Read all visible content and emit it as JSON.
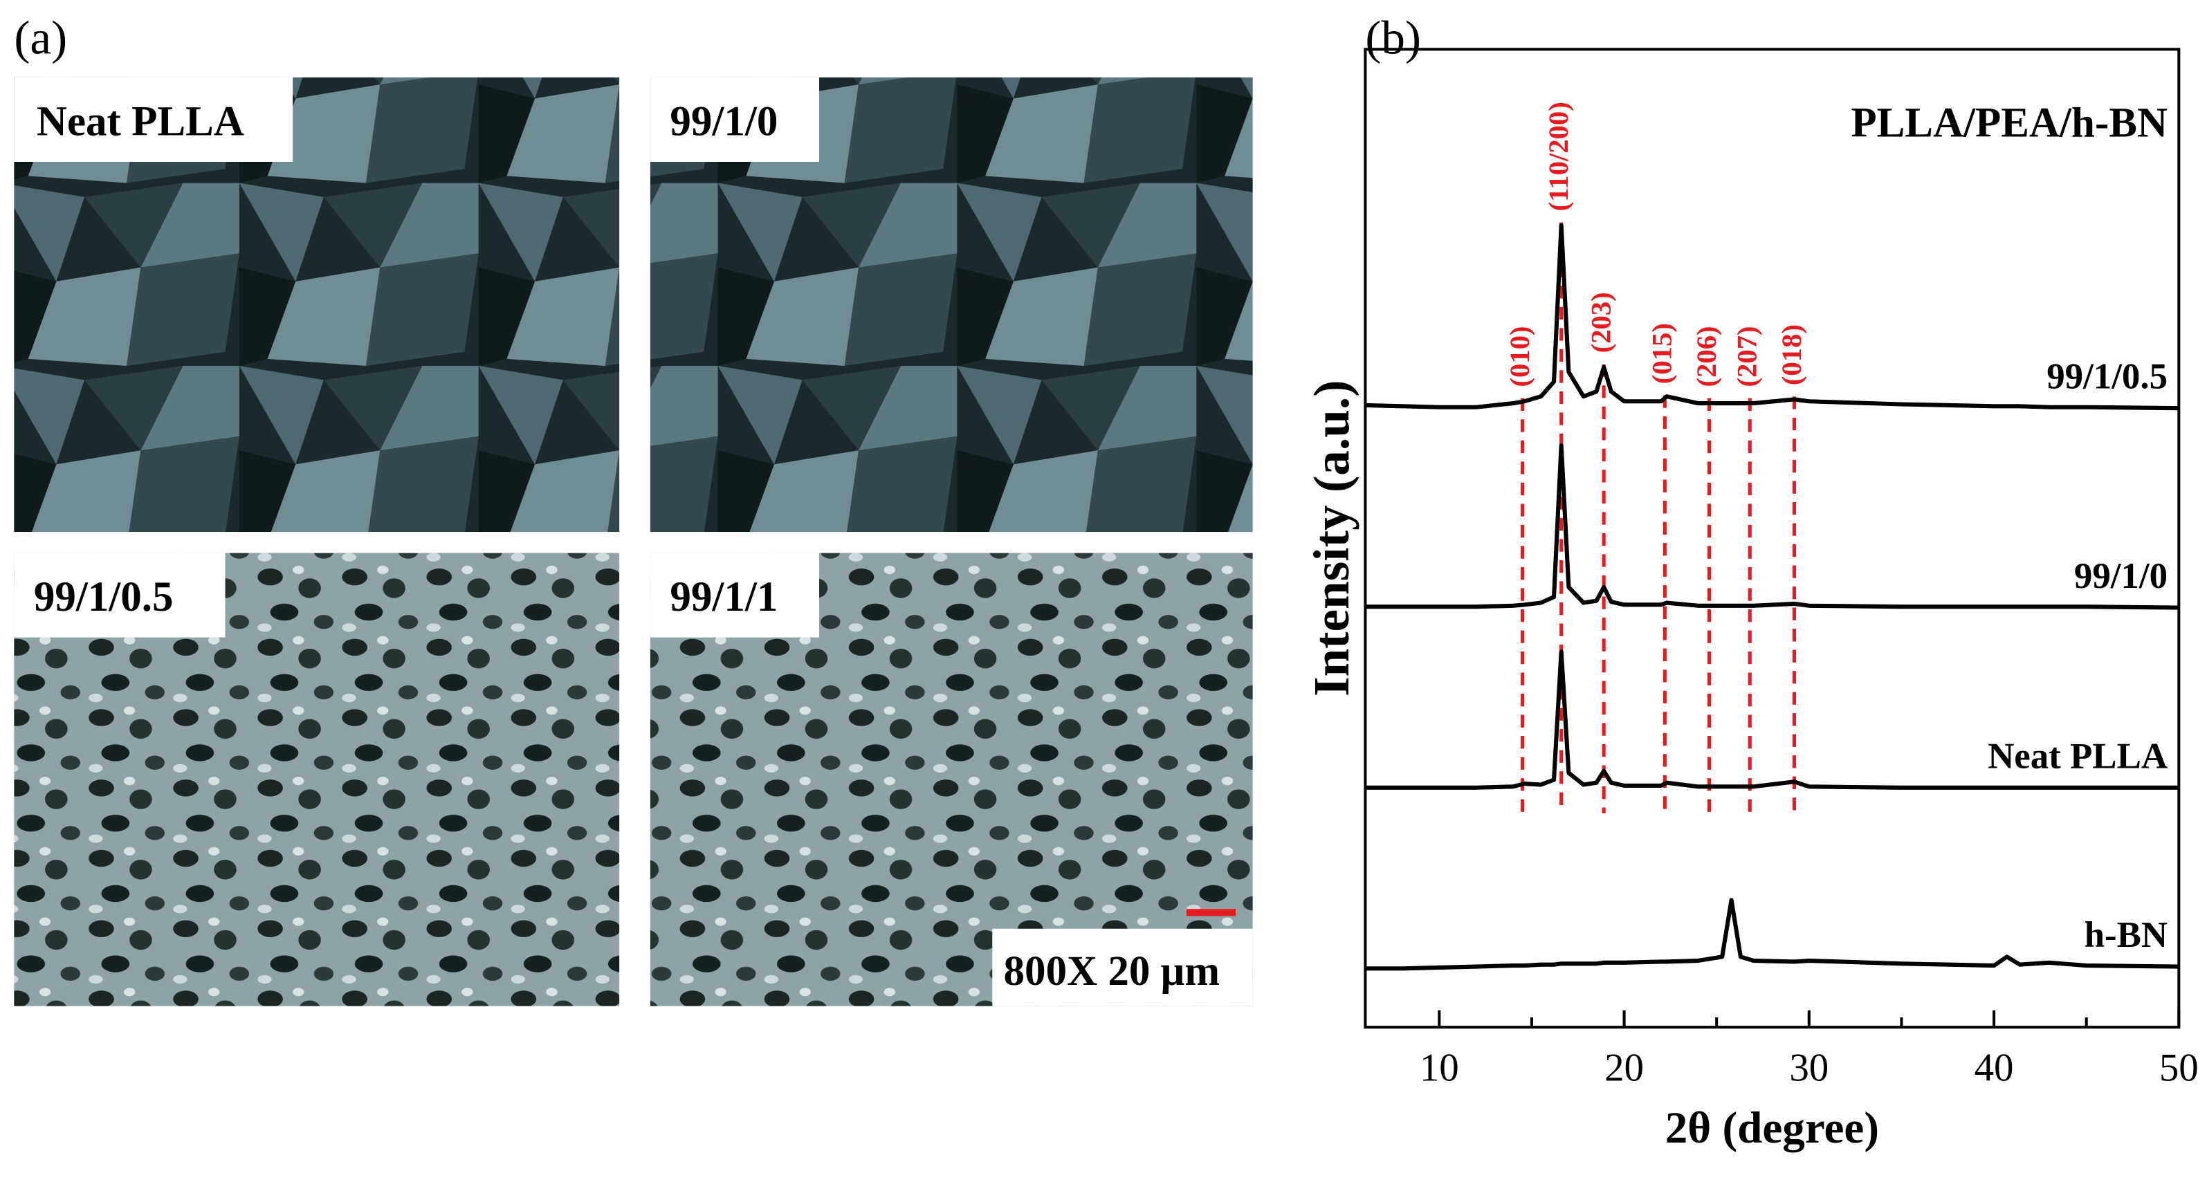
{
  "panel_a": {
    "label": "(a)",
    "images": [
      {
        "label": "Neat PLLA"
      },
      {
        "label": "99/1/0"
      },
      {
        "label": "99/1/0.5"
      },
      {
        "label": "99/1/1"
      }
    ],
    "scale_bar": "800X 20 μm",
    "scale_bar_color": "#e8191f"
  },
  "panel_b": {
    "label": "(b)"
  },
  "chart_data": {
    "type": "line",
    "annotation": "PLLA/PEA/h-BN",
    "xlabel": "2θ (degree)",
    "ylabel": "Intensity (a.u.)",
    "xlim": [
      6,
      50
    ],
    "xticks": [
      10,
      20,
      30,
      40,
      50
    ],
    "minor_xticks": [
      15,
      25,
      35,
      45
    ],
    "ylim": [
      0,
      100
    ],
    "x": [
      6,
      8,
      10,
      12,
      14,
      14.6,
      15.5,
      16.2,
      16.6,
      17.0,
      17.8,
      18.5,
      18.9,
      19.3,
      20,
      22,
      22.3,
      24,
      25.3,
      25.8,
      26.3,
      27,
      29.2,
      30,
      35,
      40,
      40.7,
      41.4,
      43,
      45,
      50
    ],
    "series": [
      {
        "name": "99/1/0.5",
        "color": "#000000",
        "values": [
          63.6,
          63.5,
          63.4,
          63.4,
          63.8,
          64,
          64.5,
          66,
          82,
          67,
          64.5,
          65,
          67.5,
          65,
          64,
          64,
          64.5,
          63.8,
          63.8,
          63.8,
          63.8,
          63.8,
          64.2,
          64,
          63.7,
          63.5,
          63.5,
          63.5,
          63.4,
          63.4,
          63.3
        ]
      },
      {
        "name": "99/1/0",
        "color": "#000000",
        "values": [
          43,
          43,
          43,
          43,
          43.1,
          43.2,
          43.4,
          44,
          59.5,
          45,
          43.4,
          43.6,
          45,
          43.5,
          43.2,
          43.2,
          43.4,
          43.1,
          43.1,
          43.1,
          43.1,
          43.1,
          43.3,
          43.1,
          43,
          43,
          43,
          43,
          43,
          43,
          42.9
        ]
      },
      {
        "name": "Neat PLLA",
        "color": "#000000",
        "values": [
          24.5,
          24.5,
          24.5,
          24.5,
          24.6,
          24.9,
          24.8,
          25.3,
          38.4,
          26,
          24.8,
          25,
          26.2,
          25,
          24.7,
          24.7,
          25,
          24.6,
          24.6,
          24.6,
          24.6,
          24.6,
          25.1,
          24.6,
          24.5,
          24.5,
          24.5,
          24.5,
          24.5,
          24.5,
          24.5
        ]
      },
      {
        "name": "h-BN",
        "color": "#000000",
        "values": [
          6,
          6,
          6.1,
          6.2,
          6.3,
          6.3,
          6.4,
          6.4,
          6.5,
          6.5,
          6.5,
          6.5,
          6.6,
          6.6,
          6.6,
          6.7,
          6.7,
          6.8,
          7.2,
          13,
          7.2,
          6.8,
          6.7,
          6.8,
          6.5,
          6.3,
          7.2,
          6.4,
          6.6,
          6.3,
          6.2
        ]
      }
    ],
    "reference_lines": {
      "color": "#e8191f",
      "x": [
        14.5,
        16.6,
        18.9,
        22.2,
        24.6,
        26.8,
        29.2
      ],
      "labels": [
        "(010)",
        "(110/200)",
        "(203)",
        "(015)",
        "(206)",
        "(207)",
        "(018)"
      ]
    }
  }
}
